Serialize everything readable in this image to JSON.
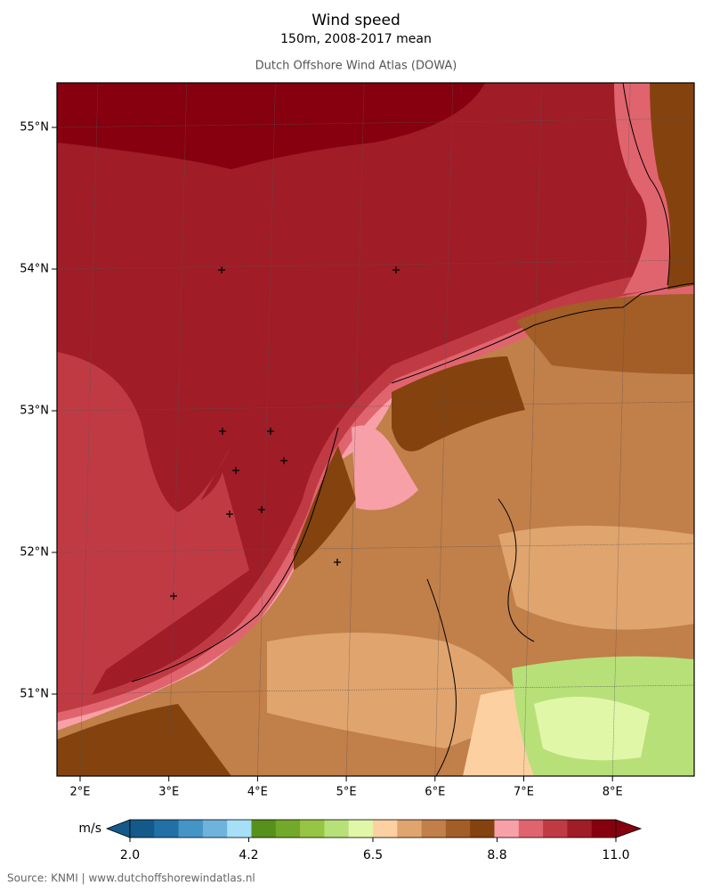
{
  "header": {
    "title": "Wind speed",
    "subtitle": "150m, 2008-2017 mean",
    "source_name": "Dutch Offshore Wind Atlas (DOWA)"
  },
  "map": {
    "lat_labels": [
      {
        "value": 55,
        "label": "55°N"
      },
      {
        "value": 54,
        "label": "54°N"
      },
      {
        "value": 53,
        "label": "53°N"
      },
      {
        "value": 52,
        "label": "52°N"
      },
      {
        "value": 51,
        "label": "51°N"
      }
    ],
    "lon_labels": [
      {
        "value": 2,
        "label": "2°E"
      },
      {
        "value": 3,
        "label": "3°E"
      },
      {
        "value": 4,
        "label": "4°E"
      },
      {
        "value": 5,
        "label": "5°E"
      },
      {
        "value": 6,
        "label": "6°E"
      },
      {
        "value": 7,
        "label": "7°E"
      },
      {
        "value": 8,
        "label": "8°E"
      }
    ]
  },
  "colorbar": {
    "unit": "m/s",
    "range": [
      2.0,
      11.0
    ],
    "ticks": [
      {
        "value": 2.0,
        "label": "2.0"
      },
      {
        "value": 4.2,
        "label": "4.2"
      },
      {
        "value": 6.5,
        "label": "6.5"
      },
      {
        "value": 8.8,
        "label": "8.8"
      },
      {
        "value": 11.0,
        "label": "11.0"
      }
    ],
    "colors": [
      "#135a8a",
      "#2271a6",
      "#4495c6",
      "#6db3dc",
      "#a6e0f7",
      "#57901a",
      "#73a92a",
      "#97c443",
      "#b8e078",
      "#e0f7a8",
      "#fdd0a2",
      "#e0a46e",
      "#c17f4a",
      "#a35d26",
      "#84420f",
      "#f8a0a8",
      "#e0646e",
      "#c03a44",
      "#a01c26",
      "#86000f"
    ]
  },
  "footer": {
    "source": "Source: KNMI | www.dutchoffshorewindatlas.nl"
  }
}
